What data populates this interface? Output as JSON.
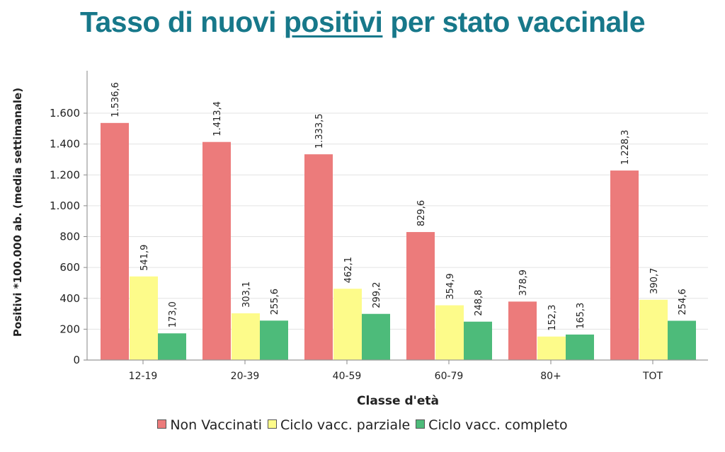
{
  "title": {
    "before": "Tasso di nuovi ",
    "underlined": "positivi",
    "after": " per stato vaccinale",
    "color": "#17788a"
  },
  "chart_data": {
    "type": "bar",
    "title": "Tasso di nuovi positivi per stato vaccinale",
    "xlabel": "Classe d'età",
    "ylabel": "Positivi *100.000 ab. (media settimanale)",
    "ylim": [
      0,
      1800
    ],
    "yticks": [
      0,
      200,
      400,
      600,
      800,
      1000,
      1200,
      1400,
      1600
    ],
    "ytick_labels": [
      "0",
      "200",
      "400",
      "600",
      "800",
      "1.000",
      "1.200",
      "1.400",
      "1.600"
    ],
    "grid": true,
    "legend_position": "bottom",
    "categories": [
      "12-19",
      "20-39",
      "40-59",
      "60-79",
      "80+",
      "TOT"
    ],
    "series": [
      {
        "name": "Non Vaccinati",
        "color": "#ec7b7b",
        "values": [
          1536.6,
          1413.4,
          1333.5,
          829.6,
          378.9,
          1228.3
        ],
        "labels": [
          "1.536,6",
          "1.413,4",
          "1.333,5",
          "829,6",
          "378,9",
          "1.228,3"
        ]
      },
      {
        "name": "Ciclo vacc. parziale",
        "color": "#fdfb8a",
        "values": [
          541.9,
          303.1,
          462.1,
          354.9,
          152.3,
          390.7
        ],
        "labels": [
          "541,9",
          "303,1",
          "462,1",
          "354,9",
          "152,3",
          "390,7"
        ]
      },
      {
        "name": "Ciclo vacc. completo",
        "color": "#4dbb7a",
        "values": [
          173.0,
          255.6,
          299.2,
          248.8,
          165.3,
          254.6
        ],
        "labels": [
          "173,0",
          "255,6",
          "299,2",
          "248,8",
          "165,3",
          "254,6"
        ]
      }
    ]
  }
}
